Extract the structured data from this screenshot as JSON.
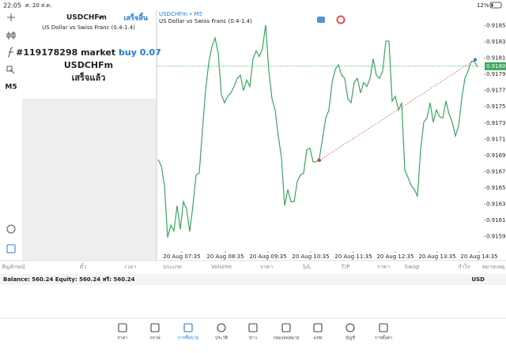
{
  "status_bar": {
    "time": "22:05",
    "date": "ศ. 20 ส.ค.",
    "battery": "12%"
  },
  "toolbar": {
    "timeframe": "M5"
  },
  "order_panel": {
    "symbol": "USDCHFm",
    "done": "เสร็จสิ้น",
    "description": "US Dollar vs Swiss Franc (0.4-1.4)",
    "order": "#119178298 market",
    "side": "buy 0.07",
    "order_symbol": "USDCHFm",
    "result": "เสร็จแล้ว"
  },
  "chart_data": {
    "type": "line",
    "title": "USDCHFm • M5",
    "subtitle": "US Dollar vs Swiss Franc (0.4-1.4)",
    "series": [
      {
        "name": "USDCHFm",
        "color": "#3aa65c",
        "values": [
          0.91685,
          0.91677,
          0.91653,
          0.91589,
          0.91604,
          0.91597,
          0.91628,
          0.91599,
          0.91633,
          0.91624,
          0.91596,
          0.91628,
          0.91666,
          0.91668,
          0.91721,
          0.9177,
          0.91804,
          0.91824,
          0.91835,
          0.91816,
          0.91765,
          0.91755,
          0.91763,
          0.91767,
          0.91775,
          0.91785,
          0.91789,
          0.9177,
          0.91783,
          0.91775,
          0.91809,
          0.91819,
          0.91812,
          0.91822,
          0.91851,
          0.91794,
          0.9176,
          0.91746,
          0.91714,
          0.91687,
          0.91628,
          0.91648,
          0.91633,
          0.91633,
          0.91658,
          0.91666,
          0.91668,
          0.91697,
          0.91699,
          0.91682,
          0.91682,
          0.91687,
          0.91711,
          0.91736,
          0.91746,
          0.9178,
          0.91796,
          0.91802,
          0.91789,
          0.91785,
          0.9176,
          0.91755,
          0.9178,
          0.91785,
          0.91767,
          0.9178,
          0.91775,
          0.91785,
          0.91809,
          0.91789,
          0.91785,
          0.91794,
          0.91831,
          0.91831,
          0.91757,
          0.91763,
          0.91746,
          0.91755,
          0.91672,
          0.91663,
          0.91653,
          0.91648,
          0.9164,
          0.91697,
          0.91731,
          0.91736,
          0.91755,
          0.91731,
          0.91746,
          0.91738,
          0.91736,
          0.91757,
          0.91741,
          0.91731,
          0.91714,
          0.91726,
          0.9176,
          0.91785,
          0.91794,
          0.91806,
          0.91806,
          0.91799
        ]
      }
    ],
    "xlim": [
      -0.5,
      103
    ],
    "ylim": [
      0.91572,
      0.9187
    ],
    "xticks": [
      {
        "value": 7.5,
        "label": "20 Aug 07:35"
      },
      {
        "value": 21.25,
        "label": "20 Aug 08:35"
      },
      {
        "value": 34.75,
        "label": "20 Aug 09:35"
      },
      {
        "value": 48.25,
        "label": "20 Aug 10:35"
      },
      {
        "value": 61.75,
        "label": "20 Aug 11:35"
      },
      {
        "value": 75,
        "label": "20 Aug 12:35"
      },
      {
        "value": 88.25,
        "label": "20 Aug 13:35"
      },
      {
        "value": 101.5,
        "label": "20 Aug 14:35"
      }
    ],
    "yticks": [
      {
        "value": 0.9185,
        "label": "0.91850"
      },
      {
        "value": 0.9183,
        "label": "0.91830"
      },
      {
        "value": 0.9181,
        "label": "0.91810"
      },
      {
        "value": 0.9179,
        "label": "0.91790"
      },
      {
        "value": 0.9177,
        "label": "0.91770"
      },
      {
        "value": 0.9175,
        "label": "0.91750"
      },
      {
        "value": 0.9173,
        "label": "0.91730"
      },
      {
        "value": 0.9171,
        "label": "0.91710"
      },
      {
        "value": 0.9169,
        "label": "0.91690"
      },
      {
        "value": 0.9167,
        "label": "0.91670"
      },
      {
        "value": 0.9165,
        "label": "0.91650"
      },
      {
        "value": 0.9163,
        "label": "0.91630"
      },
      {
        "value": 0.9161,
        "label": "0.91610"
      },
      {
        "value": 0.9159,
        "label": "0.91590"
      }
    ],
    "current_price": {
      "value": 0.918,
      "label": "0.91800"
    },
    "trade_line": {
      "x": [
        51,
        100.25
      ],
      "y": [
        0.91684,
        0.91808
      ]
    }
  },
  "table": {
    "columns": [
      "สัญลักษณ์",
      "ตั๋ว",
      "เวลา",
      "ประเภท",
      "Volume",
      "ราคา",
      "S/L",
      "T/P",
      "ราคา",
      "Swap",
      "กำไร",
      "หมายเหตุ"
    ],
    "balance": "Balance: 560.24 Equity: 560.24 ฟรี: 560.24",
    "currency": "USD"
  },
  "nav": [
    "ราคา",
    "กราฟ",
    "การซื้อขาย",
    "ประวัติ",
    "ข่าว",
    "กล่องจดหมาย",
    "แชท",
    "บัญชี",
    "การตั้งค่า"
  ]
}
